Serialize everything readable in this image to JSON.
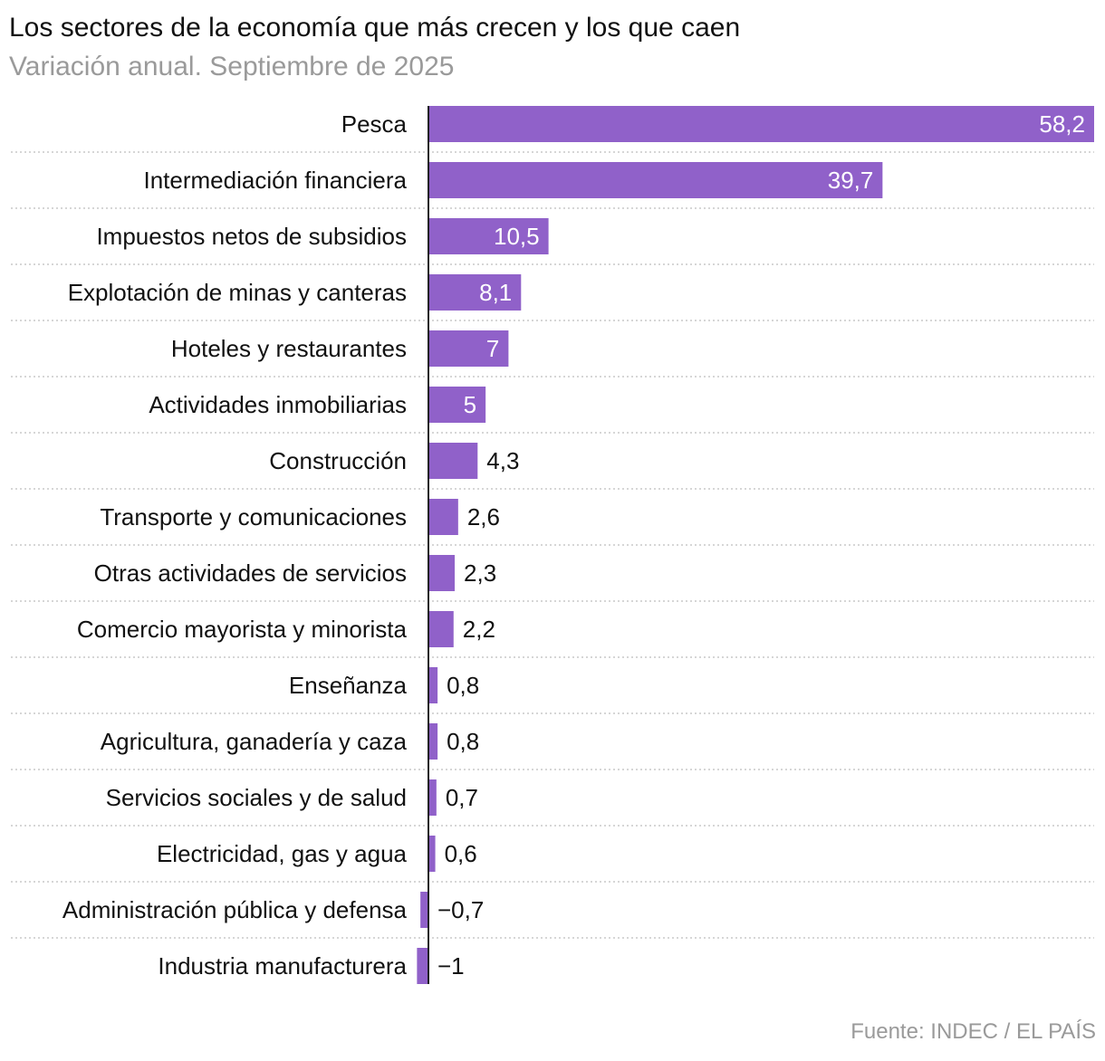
{
  "chart_data": {
    "type": "bar",
    "orientation": "horizontal",
    "title": "Los sectores de la economía que más crecen y los que caen",
    "subtitle": "Variación anual. Septiembre de 2025",
    "source": "Fuente: INDEC / EL PAÍS",
    "categories": [
      "Pesca",
      "Intermediación financiera",
      "Impuestos netos de subsidios",
      "Explotación de minas y canteras",
      "Hoteles y restaurantes",
      "Actividades inmobiliarias",
      "Construcción",
      "Transporte y comunicaciones",
      "Otras actividades de servicios",
      "Comercio mayorista y minorista",
      "Enseñanza",
      "Agricultura, ganadería y caza",
      "Servicios sociales y de salud",
      "Electricidad, gas y agua",
      "Administración pública y defensa",
      "Industria manufacturera"
    ],
    "values": [
      58.2,
      39.7,
      10.5,
      8.1,
      7,
      5,
      4.3,
      2.6,
      2.3,
      2.2,
      0.8,
      0.8,
      0.7,
      0.6,
      -0.7,
      -1
    ],
    "labels": [
      "58,2",
      "39,7",
      "10,5",
      "8,1",
      "7",
      "5",
      "4,3",
      "2,6",
      "2,3",
      "2,2",
      "0,8",
      "0,8",
      "0,7",
      "0,6",
      "−0,7",
      "−1"
    ],
    "xlim": [
      -1,
      58.2
    ],
    "grid": false,
    "bar_color": "#9061c9"
  }
}
